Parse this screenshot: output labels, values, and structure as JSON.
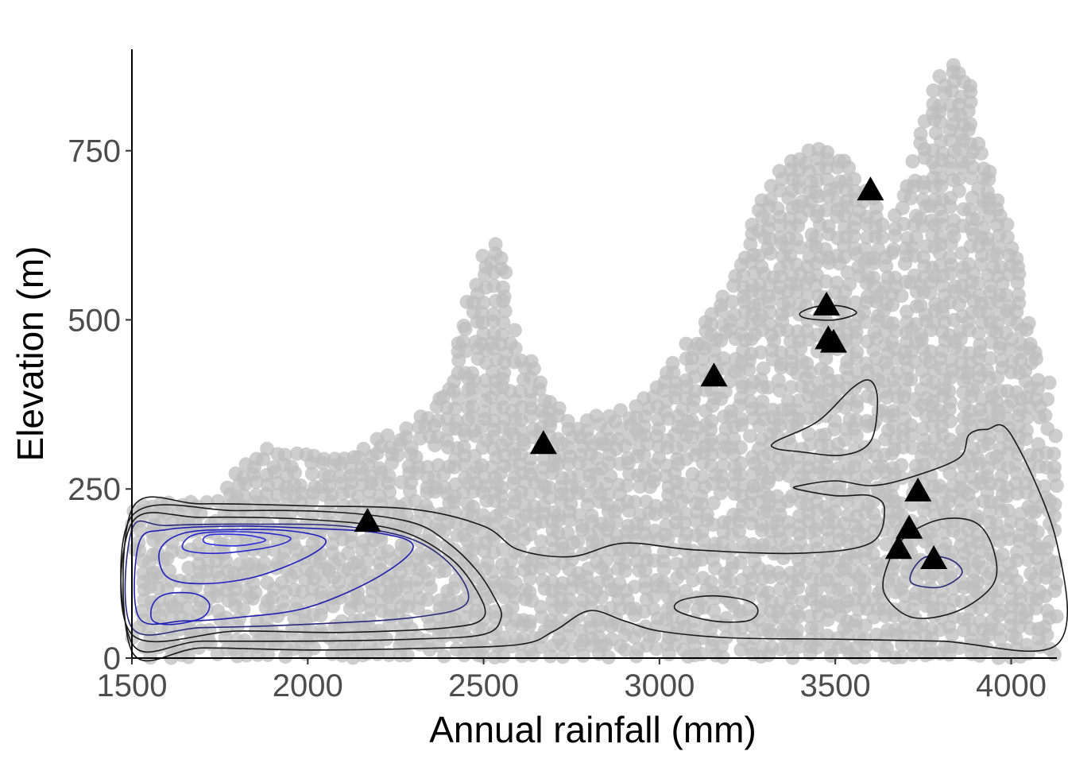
{
  "chart_data": {
    "type": "scatter",
    "xlabel": "Annual rainfall (mm)",
    "ylabel": "Elevation (m)",
    "xlim": [
      1500,
      4130
    ],
    "ylim": [
      0,
      900
    ],
    "x_ticks": [
      1500,
      2000,
      2500,
      3000,
      3500,
      4000
    ],
    "y_ticks": [
      0,
      250,
      500,
      750
    ],
    "grid": false,
    "legend": "none",
    "colors": {
      "background_points": "#bebebe",
      "contour_outer": "#1a1a1a",
      "contour_inner": "#2020c0",
      "site_markers": "#000000"
    },
    "background_points_description": "dense grey point cloud of environmental space, shown as an envelope",
    "point_cloud_envelope": [
      [
        1500,
        0
      ],
      [
        1500,
        230
      ],
      [
        1560,
        235
      ],
      [
        1650,
        235
      ],
      [
        1750,
        240
      ],
      [
        1800,
        280
      ],
      [
        1850,
        310
      ],
      [
        1950,
        310
      ],
      [
        2050,
        300
      ],
      [
        2150,
        320
      ],
      [
        2250,
        340
      ],
      [
        2350,
        370
      ],
      [
        2400,
        420
      ],
      [
        2450,
        530
      ],
      [
        2500,
        600
      ],
      [
        2540,
        620
      ],
      [
        2570,
        580
      ],
      [
        2580,
        500
      ],
      [
        2640,
        440
      ],
      [
        2700,
        380
      ],
      [
        2750,
        360
      ],
      [
        2900,
        370
      ],
      [
        3000,
        420
      ],
      [
        3100,
        490
      ],
      [
        3200,
        560
      ],
      [
        3300,
        690
      ],
      [
        3350,
        730
      ],
      [
        3450,
        760
      ],
      [
        3550,
        740
      ],
      [
        3650,
        640
      ],
      [
        3700,
        700
      ],
      [
        3750,
        790
      ],
      [
        3800,
        880
      ],
      [
        3880,
        890
      ],
      [
        3930,
        750
      ],
      [
        4000,
        640
      ],
      [
        4050,
        500
      ],
      [
        4130,
        380
      ],
      [
        4130,
        0
      ]
    ],
    "sites": [
      {
        "x": 2170,
        "y": 200
      },
      {
        "x": 2670,
        "y": 315
      },
      {
        "x": 3155,
        "y": 415
      },
      {
        "x": 3475,
        "y": 520
      },
      {
        "x": 3480,
        "y": 470
      },
      {
        "x": 3495,
        "y": 465
      },
      {
        "x": 3600,
        "y": 690
      },
      {
        "x": 3680,
        "y": 160
      },
      {
        "x": 3710,
        "y": 190
      },
      {
        "x": 3735,
        "y": 245
      },
      {
        "x": 3780,
        "y": 145
      }
    ],
    "contours": [
      {
        "level": 1,
        "color": "#1a1a1a",
        "points": [
          [
            1500,
            10
          ],
          [
            1700,
            15
          ],
          [
            2000,
            12
          ],
          [
            2300,
            14
          ],
          [
            2600,
            20
          ],
          [
            2700,
            40
          ],
          [
            2800,
            70
          ],
          [
            2900,
            55
          ],
          [
            3000,
            40
          ],
          [
            3200,
            30
          ],
          [
            3500,
            28
          ],
          [
            3800,
            25
          ],
          [
            4130,
            20
          ],
          [
            4130,
            170
          ],
          [
            4000,
            330
          ],
          [
            3930,
            338
          ],
          [
            3880,
            330
          ],
          [
            3850,
            295
          ],
          [
            3700,
            265
          ],
          [
            3600,
            255
          ],
          [
            3500,
            262
          ],
          [
            3400,
            255
          ],
          [
            3390,
            250
          ],
          [
            3500,
            240
          ],
          [
            3600,
            240
          ],
          [
            3640,
            220
          ],
          [
            3600,
            170
          ],
          [
            3400,
            155
          ],
          [
            3100,
            160
          ],
          [
            2900,
            170
          ],
          [
            2750,
            150
          ],
          [
            2600,
            160
          ],
          [
            2500,
            195
          ],
          [
            2300,
            220
          ],
          [
            2000,
            225
          ],
          [
            1700,
            228
          ],
          [
            1500,
            220
          ]
        ]
      },
      {
        "level": 2,
        "color": "#1a1a1a",
        "points": [
          [
            1500,
            22
          ],
          [
            1700,
            25
          ],
          [
            2000,
            25
          ],
          [
            2300,
            28
          ],
          [
            2500,
            35
          ],
          [
            2550,
            60
          ],
          [
            2530,
            90
          ],
          [
            2480,
            130
          ],
          [
            2400,
            170
          ],
          [
            2300,
            200
          ],
          [
            2100,
            215
          ],
          [
            1800,
            218
          ],
          [
            1500,
            210
          ]
        ]
      },
      {
        "level": 3,
        "color": "#1a1a1a",
        "points": [
          [
            1500,
            35
          ],
          [
            1800,
            40
          ],
          [
            2100,
            38
          ],
          [
            2400,
            45
          ],
          [
            2500,
            60
          ],
          [
            2480,
            100
          ],
          [
            2400,
            150
          ],
          [
            2250,
            190
          ],
          [
            2000,
            205
          ],
          [
            1700,
            208
          ],
          [
            1500,
            200
          ]
        ]
      },
      {
        "level": 4,
        "color": "#2a2a7a",
        "points": [
          [
            1500,
            45
          ],
          [
            1700,
            45
          ],
          [
            2000,
            50
          ],
          [
            2300,
            60
          ],
          [
            2450,
            80
          ],
          [
            2420,
            130
          ],
          [
            2300,
            175
          ],
          [
            2100,
            195
          ],
          [
            1850,
            198
          ],
          [
            1600,
            196
          ],
          [
            1500,
            190
          ]
        ]
      },
      {
        "level": 5,
        "color": "#2020b0",
        "points": [
          [
            1520,
            60
          ],
          [
            1650,
            55
          ],
          [
            1800,
            60
          ],
          [
            2000,
            75
          ],
          [
            2200,
            120
          ],
          [
            2300,
            165
          ],
          [
            2200,
            185
          ],
          [
            2000,
            192
          ],
          [
            1800,
            195
          ],
          [
            1600,
            190
          ],
          [
            1520,
            170
          ]
        ]
      },
      {
        "level": 6,
        "color": "#2020c0",
        "points": [
          [
            1600,
            120
          ],
          [
            1700,
            110
          ],
          [
            1850,
            120
          ],
          [
            2000,
            150
          ],
          [
            2050,
            175
          ],
          [
            1950,
            188
          ],
          [
            1800,
            190
          ],
          [
            1650,
            185
          ],
          [
            1580,
            160
          ]
        ]
      },
      {
        "level": 7,
        "color": "#2828d0",
        "points": [
          [
            1650,
            160
          ],
          [
            1750,
            155
          ],
          [
            1900,
            165
          ],
          [
            1950,
            178
          ],
          [
            1850,
            186
          ],
          [
            1720,
            186
          ],
          [
            1660,
            178
          ]
        ]
      },
      {
        "level": 8,
        "color": "#3030e0",
        "points": [
          [
            1710,
            170
          ],
          [
            1800,
            166
          ],
          [
            1880,
            174
          ],
          [
            1820,
            182
          ],
          [
            1720,
            182
          ]
        ]
      },
      {
        "level": 9,
        "color": "#2020c0",
        "points": [
          [
            1560,
            55
          ],
          [
            1620,
            50
          ],
          [
            1700,
            60
          ],
          [
            1720,
            80
          ],
          [
            1680,
            95
          ],
          [
            1600,
            95
          ],
          [
            1560,
            80
          ]
        ]
      },
      {
        "level": 10,
        "color": "#1a1a1a",
        "points": [
          [
            3050,
            70
          ],
          [
            3150,
            55
          ],
          [
            3250,
            55
          ],
          [
            3280,
            70
          ],
          [
            3250,
            85
          ],
          [
            3150,
            92
          ],
          [
            3060,
            85
          ]
        ]
      },
      {
        "level": 11,
        "color": "#1a1a1a",
        "points": [
          [
            3330,
            320
          ],
          [
            3450,
            350
          ],
          [
            3550,
            400
          ],
          [
            3600,
            410
          ],
          [
            3620,
            380
          ],
          [
            3600,
            320
          ],
          [
            3520,
            300
          ],
          [
            3400,
            305
          ],
          [
            3330,
            310
          ]
        ]
      },
      {
        "level": 12,
        "color": "#1a1a1a",
        "points": [
          [
            3400,
            510
          ],
          [
            3450,
            520
          ],
          [
            3520,
            520
          ],
          [
            3560,
            510
          ],
          [
            3500,
            500
          ],
          [
            3420,
            502
          ]
        ]
      },
      {
        "level": 13,
        "color": "#1a1a1a",
        "points": [
          [
            3640,
            95
          ],
          [
            3720,
            60
          ],
          [
            3850,
            70
          ],
          [
            3950,
            110
          ],
          [
            3950,
            160
          ],
          [
            3900,
            200
          ],
          [
            3800,
            205
          ],
          [
            3700,
            180
          ],
          [
            3650,
            140
          ]
        ]
      },
      {
        "level": 14,
        "color": "#2a2a7a",
        "points": [
          [
            3720,
            110
          ],
          [
            3800,
            105
          ],
          [
            3860,
            125
          ],
          [
            3830,
            145
          ],
          [
            3760,
            150
          ],
          [
            3720,
            130
          ]
        ]
      }
    ]
  }
}
